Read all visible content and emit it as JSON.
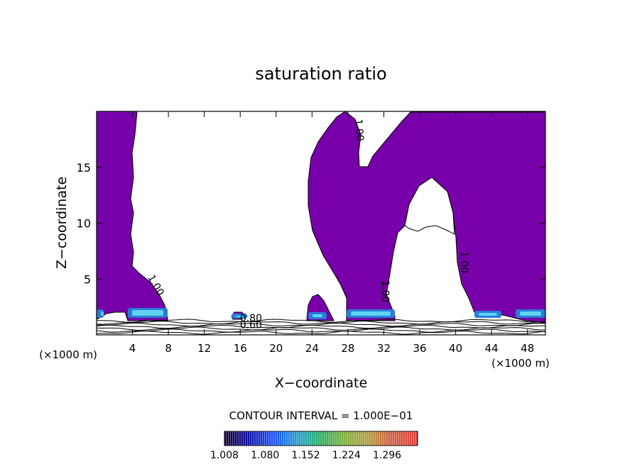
{
  "chart_data": {
    "type": "contour",
    "title": "saturation ratio",
    "xlabel": "X−coordinate",
    "ylabel": "Z−coordinate",
    "x_unit_left": "(×1000 m)",
    "x_unit_right": "(×1000 m)",
    "xlim": [
      0,
      50
    ],
    "ylim": [
      0,
      20
    ],
    "x_ticks": [
      4,
      8,
      12,
      16,
      20,
      24,
      28,
      32,
      36,
      40,
      44,
      48
    ],
    "y_ticks": [
      5,
      10,
      15
    ],
    "contour_interval_text": "CONTOUR INTERVAL = 1.000E−01",
    "contour_labels": [
      {
        "text": "1.00",
        "x": 28.9,
        "y": 18.3,
        "angle": 85
      },
      {
        "text": "1.00",
        "x": 6.3,
        "y": 4.3,
        "angle": 60
      },
      {
        "text": "1.00",
        "x": 31.8,
        "y": 3.9,
        "angle": 90
      },
      {
        "text": "1.00",
        "x": 40.6,
        "y": 6.5,
        "angle": 90
      },
      {
        "text": "0.80",
        "x": 17.2,
        "y": 1.2,
        "angle": 0
      },
      {
        "text": "0.60",
        "x": 17.2,
        "y": 0.6,
        "angle": 0
      }
    ],
    "colorbar": {
      "ticks": [
        "1.008",
        "1.080",
        "1.152",
        "1.224",
        "1.296"
      ],
      "range": [
        1.008,
        1.35
      ]
    },
    "fill_color": "#7700aa"
  }
}
